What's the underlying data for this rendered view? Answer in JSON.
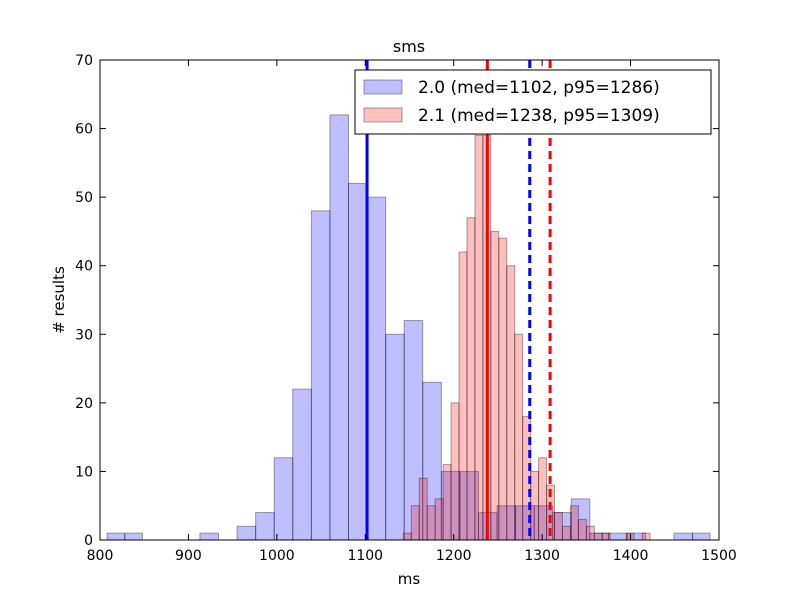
{
  "chart_data": {
    "type": "bar",
    "title": "sms",
    "xlabel": "ms",
    "ylabel": "# results",
    "xlim": [
      800,
      1500
    ],
    "ylim": [
      0,
      70
    ],
    "xticks": [
      "800",
      "900",
      "1000",
      "1100",
      "1200",
      "1300",
      "1400",
      "1500"
    ],
    "yticks": [
      "0",
      "10",
      "20",
      "30",
      "40",
      "50",
      "60",
      "70"
    ],
    "legend_position": "top-right",
    "grid": false,
    "series": [
      {
        "name": "2.0 (med=1102, p95=1286)",
        "color": "#0000ff",
        "fill_opacity": 0.25,
        "bins": [
          [
            808,
            828,
            1
          ],
          [
            828,
            848,
            1
          ],
          [
            913,
            934,
            1
          ],
          [
            955,
            976,
            2
          ],
          [
            976,
            997,
            4
          ],
          [
            997,
            1018,
            12
          ],
          [
            1018,
            1039,
            22
          ],
          [
            1039,
            1060,
            48
          ],
          [
            1060,
            1081,
            62
          ],
          [
            1081,
            1102,
            52
          ],
          [
            1102,
            1123,
            50
          ],
          [
            1123,
            1144,
            30
          ],
          [
            1144,
            1165,
            32
          ],
          [
            1165,
            1186,
            23
          ],
          [
            1186,
            1207,
            10
          ],
          [
            1207,
            1228,
            10
          ],
          [
            1228,
            1249,
            4
          ],
          [
            1249,
            1270,
            5
          ],
          [
            1270,
            1291,
            5
          ],
          [
            1291,
            1312,
            5
          ],
          [
            1312,
            1333,
            4
          ],
          [
            1333,
            1354,
            6
          ],
          [
            1354,
            1375,
            1
          ],
          [
            1375,
            1396,
            1
          ],
          [
            1396,
            1417,
            1
          ],
          [
            1449,
            1470,
            1
          ],
          [
            1470,
            1490,
            1
          ]
        ]
      },
      {
        "name": "2.1 (med=1238, p95=1309)",
        "color": "#ff0000",
        "fill_opacity": 0.25,
        "bins": [
          [
            1143,
            1152,
            1
          ],
          [
            1152,
            1161,
            5
          ],
          [
            1161,
            1170,
            9
          ],
          [
            1170,
            1179,
            5
          ],
          [
            1179,
            1188,
            6
          ],
          [
            1188,
            1197,
            11
          ],
          [
            1197,
            1206,
            20
          ],
          [
            1206,
            1215,
            42
          ],
          [
            1215,
            1224,
            47
          ],
          [
            1224,
            1233,
            59
          ],
          [
            1233,
            1242,
            59
          ],
          [
            1242,
            1251,
            45
          ],
          [
            1251,
            1260,
            44
          ],
          [
            1260,
            1269,
            40
          ],
          [
            1269,
            1278,
            30
          ],
          [
            1278,
            1287,
            18
          ],
          [
            1287,
            1296,
            10
          ],
          [
            1296,
            1305,
            12
          ],
          [
            1305,
            1314,
            8
          ],
          [
            1314,
            1323,
            4
          ],
          [
            1323,
            1332,
            2
          ],
          [
            1332,
            1341,
            5
          ],
          [
            1341,
            1350,
            3
          ],
          [
            1350,
            1359,
            2
          ],
          [
            1359,
            1368,
            1
          ],
          [
            1368,
            1377,
            1
          ],
          [
            1395,
            1404,
            1
          ],
          [
            1413,
            1422,
            1
          ]
        ]
      }
    ],
    "vlines": [
      {
        "series": 0,
        "x": 1102,
        "style": "solid"
      },
      {
        "series": 0,
        "x": 1286,
        "style": "dashed"
      },
      {
        "series": 1,
        "x": 1238,
        "style": "solid"
      },
      {
        "series": 1,
        "x": 1309,
        "style": "dashed"
      }
    ]
  }
}
